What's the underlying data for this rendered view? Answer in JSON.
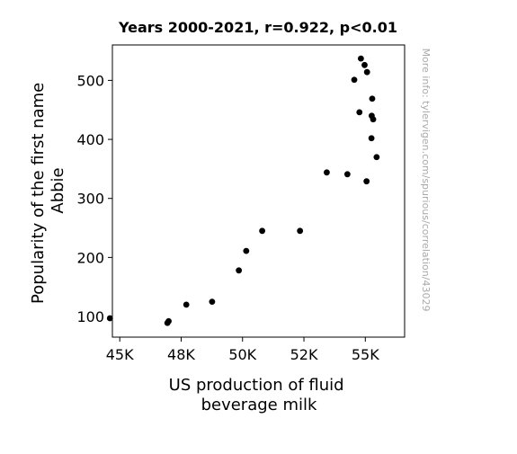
{
  "chart_data": {
    "type": "scatter",
    "title": "Years 2000-2021, r=0.922, p<0.01",
    "xlabel_lines": [
      "US production of fluid",
      "beverage milk"
    ],
    "ylabel_lines": [
      "Popularity of the first name",
      "Abbie"
    ],
    "watermark": "More info: tylervigen.com/spurious/correlation/43029",
    "xlim": [
      44700,
      56600
    ],
    "ylim": [
      65,
      560
    ],
    "x_ticks": [
      {
        "value": 45000,
        "label": "45K"
      },
      {
        "value": 47500,
        "label": "48K"
      },
      {
        "value": 50000,
        "label": "50K"
      },
      {
        "value": 52500,
        "label": "52K"
      },
      {
        "value": 55000,
        "label": "55K"
      }
    ],
    "y_ticks": [
      {
        "value": 100,
        "label": "100"
      },
      {
        "value": 200,
        "label": "200"
      },
      {
        "value": 300,
        "label": "300"
      },
      {
        "value": 400,
        "label": "400"
      },
      {
        "value": 500,
        "label": "500"
      }
    ],
    "marker_color": "#000000",
    "grid": false,
    "points": [
      {
        "x": 44600,
        "y": 97
      },
      {
        "x": 46940,
        "y": 89
      },
      {
        "x": 46990,
        "y": 92
      },
      {
        "x": 47710,
        "y": 120
      },
      {
        "x": 48760,
        "y": 125
      },
      {
        "x": 49850,
        "y": 178
      },
      {
        "x": 50150,
        "y": 211
      },
      {
        "x": 50800,
        "y": 245
      },
      {
        "x": 52340,
        "y": 245
      },
      {
        "x": 53430,
        "y": 344
      },
      {
        "x": 54270,
        "y": 341
      },
      {
        "x": 54550,
        "y": 501
      },
      {
        "x": 54760,
        "y": 446
      },
      {
        "x": 54820,
        "y": 537
      },
      {
        "x": 54970,
        "y": 526
      },
      {
        "x": 55050,
        "y": 329
      },
      {
        "x": 55070,
        "y": 514
      },
      {
        "x": 55250,
        "y": 402
      },
      {
        "x": 55260,
        "y": 440
      },
      {
        "x": 55280,
        "y": 469
      },
      {
        "x": 55320,
        "y": 434
      },
      {
        "x": 55460,
        "y": 370
      }
    ]
  }
}
